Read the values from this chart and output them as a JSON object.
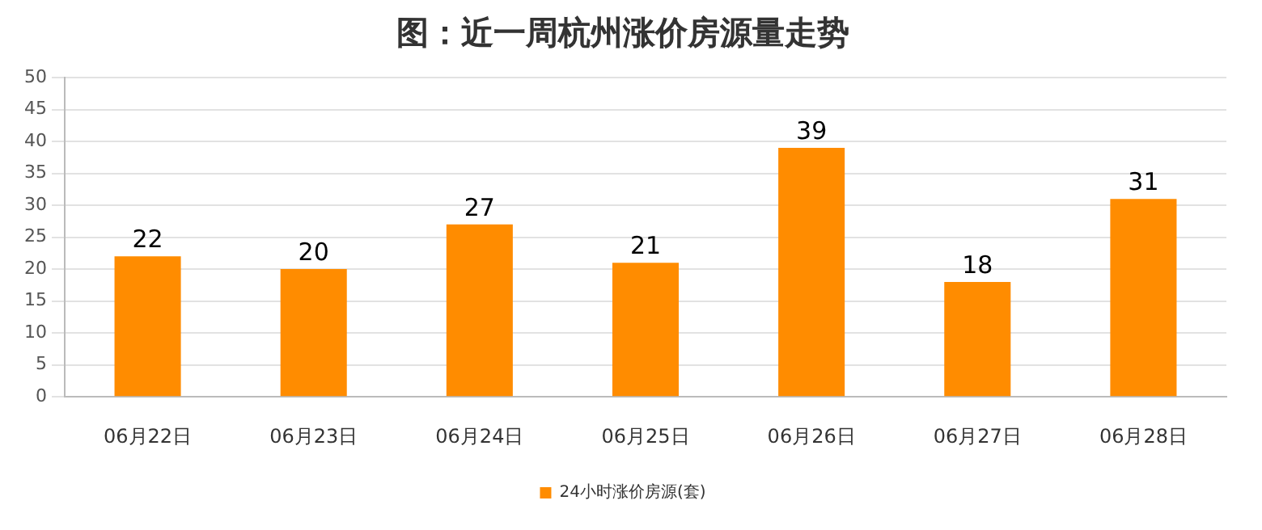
{
  "chart_data": {
    "type": "bar",
    "title": "图：近一周杭州涨价房源量走势",
    "categories": [
      "06月22日",
      "06月23日",
      "06月24日",
      "06月25日",
      "06月26日",
      "06月27日",
      "06月28日"
    ],
    "series": [
      {
        "name": "24小时涨价房源(套)",
        "color": "#ff8c00",
        "values": [
          22,
          20,
          27,
          21,
          39,
          18,
          31
        ]
      }
    ],
    "ylim": [
      0,
      50
    ],
    "yticks": [
      0,
      5,
      10,
      15,
      20,
      25,
      30,
      35,
      40,
      45,
      50
    ],
    "grid": "y",
    "legend": "bottom",
    "data_labels": true
  }
}
